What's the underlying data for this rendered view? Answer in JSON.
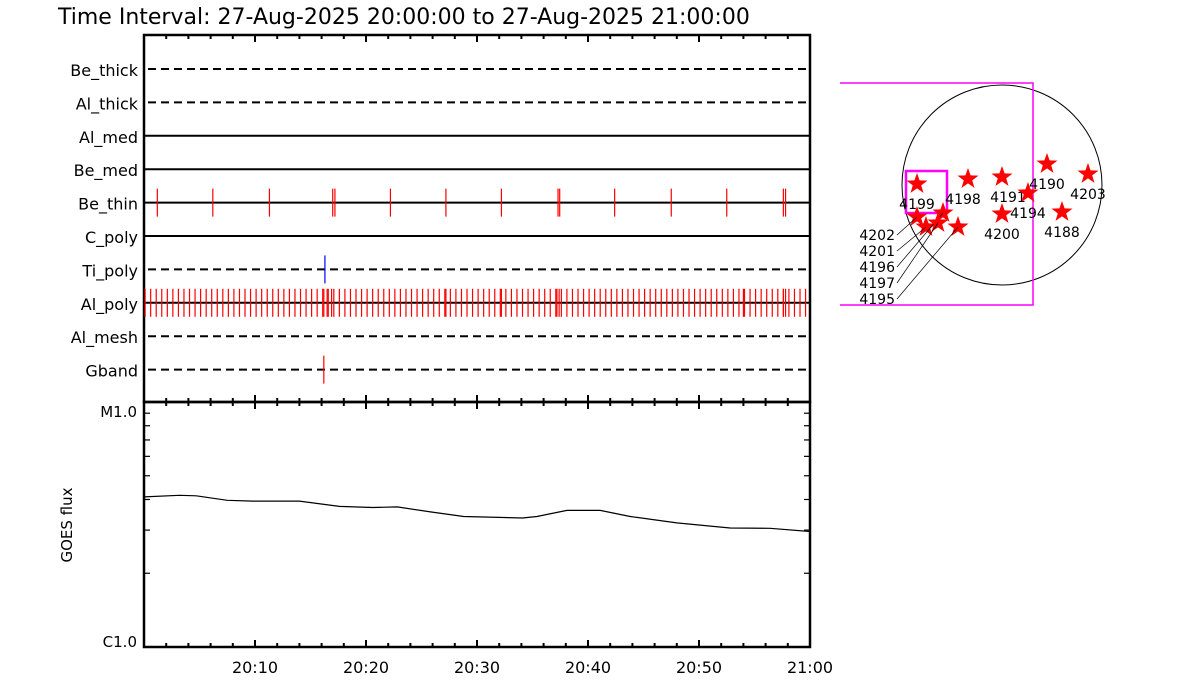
{
  "title": "Time Interval: 27-Aug-2025 20:00:00 to 27-Aug-2025 21:00:00",
  "chart_data": [
    {
      "type": "timeline",
      "x_range_min": [
        0,
        60
      ],
      "rows": [
        {
          "label": "Be_thick",
          "style": "dashed",
          "events": []
        },
        {
          "label": "Al_thick",
          "style": "dashed",
          "events": []
        },
        {
          "label": "Al_med",
          "style": "solid",
          "events": []
        },
        {
          "label": "Be_med",
          "style": "solid",
          "events": []
        },
        {
          "label": "Be_thin",
          "style": "solid",
          "color": "#ff0000",
          "events": [
            1.2,
            6.2,
            11.3,
            17.0,
            17.2,
            22.2,
            27.2,
            32.2,
            37.3,
            37.45,
            42.4,
            47.5,
            52.5,
            57.6,
            57.8
          ]
        },
        {
          "label": "C_poly",
          "style": "solid",
          "events": []
        },
        {
          "label": "Ti_poly",
          "style": "dashed",
          "color": "#0000ff",
          "events": [
            16.3
          ]
        },
        {
          "label": "Al_poly",
          "style": "solid",
          "color": "#ff0000",
          "cadence_min": 0.5,
          "start_min": 0.1,
          "extra_events": [
            16.2,
            16.5,
            16.9,
            27.2,
            32.2,
            37.2,
            37.4,
            54.0,
            57.6,
            57.8
          ]
        },
        {
          "label": "Al_mesh",
          "style": "dashed",
          "events": []
        },
        {
          "label": "Gband",
          "style": "dashed",
          "color": "#ff0000",
          "events": [
            16.2
          ]
        }
      ]
    },
    {
      "type": "line",
      "ylabel": "GOES flux",
      "yscale": "log",
      "ylim_flux": [
        1e-06,
        1e-05
      ],
      "ytick_labels": [
        "C1.0",
        "M1.0"
      ],
      "xtick_labels": [
        "20:10",
        "20:20",
        "20:30",
        "20:40",
        "20:50",
        "21:00"
      ],
      "xlim_min": [
        0,
        60
      ],
      "series": [
        {
          "x_min": [
            0,
            3.2,
            4.7,
            7.5,
            9.8,
            14.0,
            17.6,
            20.6,
            22.8,
            25.8,
            28.8,
            34.1,
            35.4,
            38.1,
            41.1,
            43.8,
            48.0,
            52.8,
            56.4,
            60
          ],
          "flux_C": [
            4.1,
            4.16,
            4.14,
            3.97,
            3.94,
            3.94,
            3.75,
            3.71,
            3.73,
            3.56,
            3.41,
            3.36,
            3.41,
            3.61,
            3.61,
            3.41,
            3.21,
            3.06,
            3.05,
            2.96
          ],
          "color": "#000000"
        }
      ]
    },
    {
      "type": "scatter",
      "description_kind": "solar disk with active regions",
      "marker": "star",
      "marker_color": "#ff0000",
      "fov_color": "#ff00ff",
      "regions": [
        {
          "label": "4199"
        },
        {
          "label": "4198"
        },
        {
          "label": "4191"
        },
        {
          "label": "4190"
        },
        {
          "label": "4203"
        },
        {
          "label": "4194"
        },
        {
          "label": "4200"
        },
        {
          "label": "4188"
        },
        {
          "label": "4202"
        },
        {
          "label": "4201"
        },
        {
          "label": "4196"
        },
        {
          "label": "4197"
        },
        {
          "label": "4195"
        }
      ]
    }
  ]
}
